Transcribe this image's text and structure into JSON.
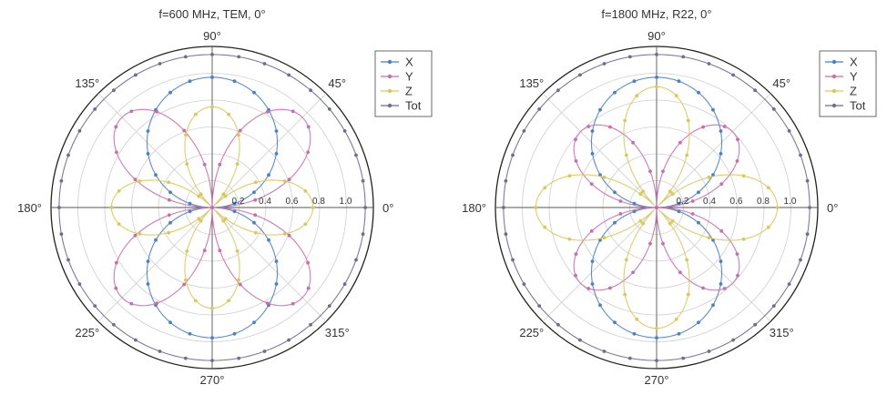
{
  "chart_data": [
    {
      "type": "polar-line",
      "title": "f=600 MHz, TEM, 0°",
      "angle_labels": [
        "0°",
        "45°",
        "90°",
        "135°",
        "180°",
        "225°",
        "270°",
        "315°"
      ],
      "radial_ticks": [
        "0.2",
        "0.4",
        "0.6",
        "0.8",
        "1.0"
      ],
      "rlim": [
        0,
        1.2
      ],
      "grid": true,
      "legend_position": "top-right",
      "series": [
        {
          "name": "X",
          "color": "#4a7fc9",
          "pattern": "|sin θ|",
          "peak": 0.97
        },
        {
          "name": "Y",
          "color": "#c96fa8",
          "pattern": "|sin 2θ|",
          "peak": 0.95
        },
        {
          "name": "Z",
          "color": "#d9c95a",
          "pattern": "|cos 2θ|",
          "peak": 0.75
        },
        {
          "name": "Tot",
          "color": "#6d6d8f",
          "pattern": "constant",
          "peak": 1.14
        }
      ]
    },
    {
      "type": "polar-line",
      "title": "f=1800 MHz, R22, 0°",
      "angle_labels": [
        "0°",
        "45°",
        "90°",
        "135°",
        "180°",
        "225°",
        "270°",
        "315°"
      ],
      "radial_ticks": [
        "0.2",
        "0.4",
        "0.6",
        "0.8",
        "1.0"
      ],
      "rlim": [
        0,
        1.2
      ],
      "grid": true,
      "legend_position": "top-right",
      "series": [
        {
          "name": "X",
          "color": "#4a7fc9",
          "pattern": "|sin θ|",
          "peak": 0.97
        },
        {
          "name": "Y",
          "color": "#c96fa8",
          "pattern": "|sin 2θ|",
          "peak": 0.8
        },
        {
          "name": "Z",
          "color": "#d9c95a",
          "pattern": "|cos 2θ|",
          "peak": 0.9
        },
        {
          "name": "Tot",
          "color": "#6d6d8f",
          "pattern": "constant",
          "peak": 1.14
        }
      ]
    }
  ]
}
